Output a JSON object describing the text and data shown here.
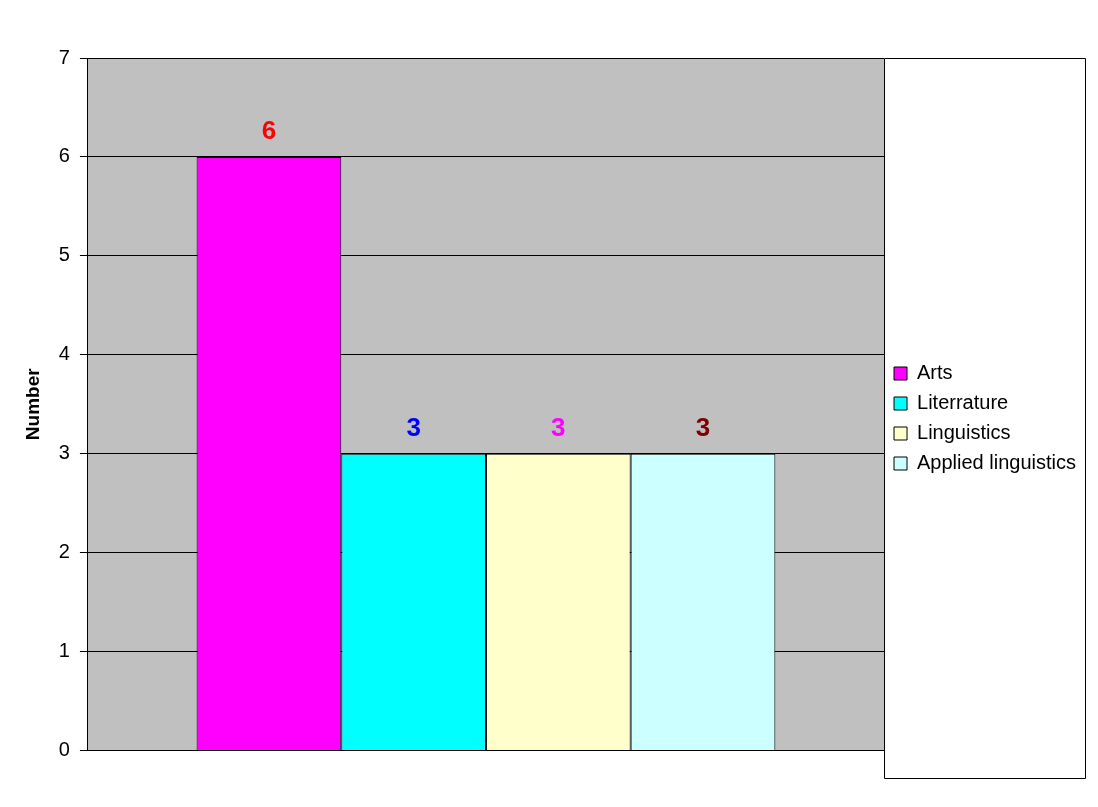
{
  "chart_data": {
    "type": "bar",
    "ylabel": "Number",
    "categories": [
      null
    ],
    "series": [
      {
        "name": "Arts",
        "color": "#ff00ff",
        "values": [
          6
        ]
      },
      {
        "name": "Literrature",
        "color": "#00ffff",
        "values": [
          3
        ]
      },
      {
        "name": "Linguistics",
        "color": "#ffffcc",
        "values": [
          3
        ]
      },
      {
        "name": "Applied linguistics",
        "color": "#ccffff",
        "values": [
          3
        ]
      }
    ],
    "ylim": [
      0,
      7
    ],
    "yticks": [
      0,
      1,
      2,
      3,
      4,
      5,
      6,
      7
    ],
    "grid": "y",
    "legend": "right",
    "data_labels": true
  }
}
